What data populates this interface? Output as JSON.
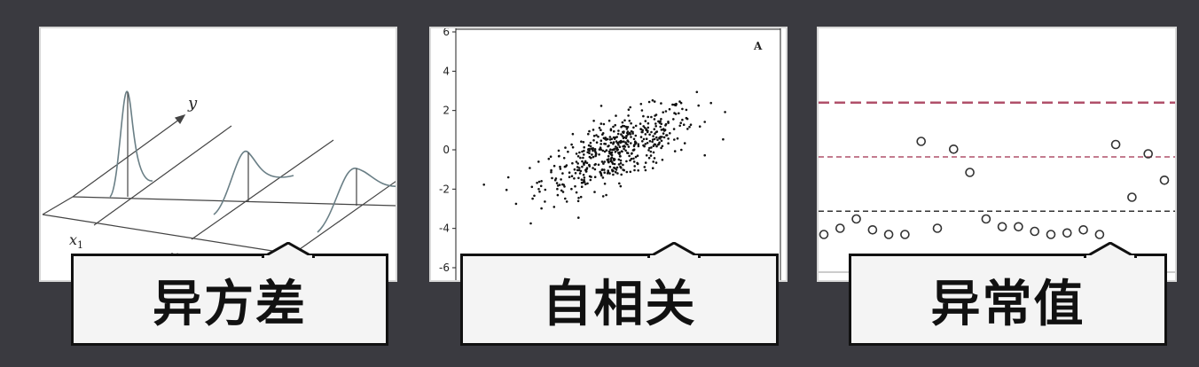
{
  "panels": [
    {
      "caption": "异方差",
      "labels": {
        "y_axis": "y",
        "x1": "x",
        "x1_sub": "1",
        "x2": "x",
        "x2_sub": "2"
      }
    },
    {
      "caption": "自相关",
      "corner_label": "A"
    },
    {
      "caption": "异常值"
    }
  ],
  "chart_data": [
    {
      "type": "scatter",
      "panel": "自相关",
      "ylim": [
        -6,
        6
      ],
      "yticks": [
        "6",
        "4",
        "2",
        "0",
        "-2",
        "-4",
        "-6"
      ],
      "xlim": [
        -4,
        4
      ],
      "description_points": "dense elliptical cloud, positive correlation",
      "point_count": 520,
      "correlation": 0.7
    },
    {
      "type": "scatter",
      "panel": "异常值",
      "ylim": [
        -6,
        6
      ],
      "hlines": [
        {
          "y": 3.5,
          "style": "dashed",
          "color": "#b0506a"
        },
        {
          "y": 0.0,
          "style": "dashed",
          "color": "#b0506a"
        },
        {
          "y": -3.5,
          "style": "dashed",
          "color": "#333333"
        }
      ],
      "points": [
        [
          0,
          -5.0
        ],
        [
          1,
          -4.6
        ],
        [
          2,
          -4.0
        ],
        [
          3,
          -4.7
        ],
        [
          4,
          -5.0
        ],
        [
          5,
          -5.0
        ],
        [
          6,
          1.0
        ],
        [
          7,
          -4.6
        ],
        [
          8,
          0.5
        ],
        [
          9,
          -1.0
        ],
        [
          10,
          -4.0
        ],
        [
          11,
          -4.5
        ],
        [
          12,
          -4.5
        ],
        [
          13,
          -4.8
        ],
        [
          14,
          -5.0
        ],
        [
          15,
          -4.9
        ],
        [
          16,
          -4.7
        ],
        [
          17,
          -5.0
        ],
        [
          18,
          0.8
        ],
        [
          19,
          -2.6
        ],
        [
          20,
          0.2
        ],
        [
          21,
          -1.5
        ]
      ]
    }
  ]
}
